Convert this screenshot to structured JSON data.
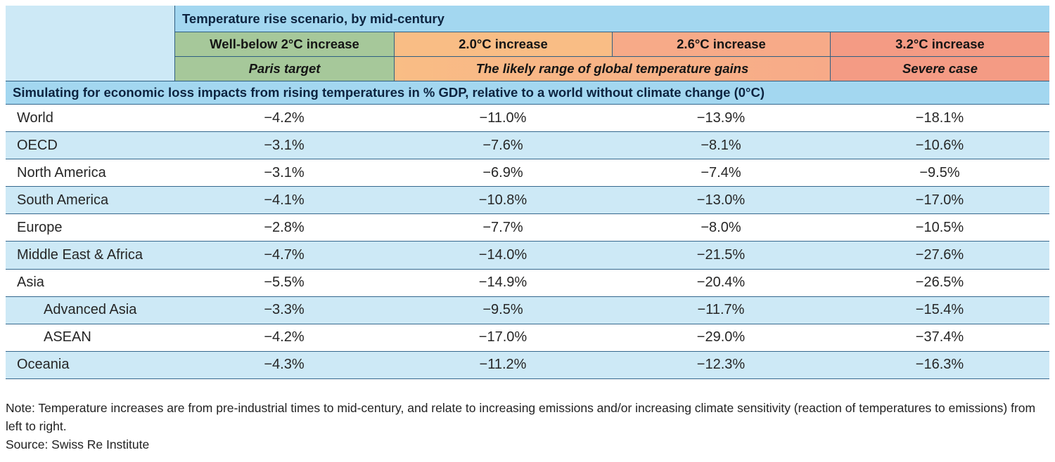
{
  "header": {
    "scenario_title": "Temperature rise scenario, by mid-century",
    "columns": [
      {
        "label": "Well-below 2°C increase",
        "sublabel": "Paris target"
      },
      {
        "label": "2.0°C increase"
      },
      {
        "label": "2.6°C increase"
      },
      {
        "label": "3.2°C increase",
        "sublabel": "Severe case"
      }
    ],
    "likely_range_label": "The likely range of global temperature gains"
  },
  "banner": {
    "text": "Simulating for economic loss impacts from rising temperatures in % GDP, relative to a world without climate change (0°C)"
  },
  "table": {
    "rows": [
      {
        "region": "World",
        "values": [
          "−4.2%",
          "−11.0%",
          "−13.9%",
          "−18.1%"
        ]
      },
      {
        "region": "OECD",
        "values": [
          "−3.1%",
          "−7.6%",
          "−8.1%",
          "−10.6%"
        ]
      },
      {
        "region": "North America",
        "values": [
          "−3.1%",
          "−6.9%",
          "−7.4%",
          "−9.5%"
        ]
      },
      {
        "region": "South America",
        "values": [
          "−4.1%",
          "−10.8%",
          "−13.0%",
          "−17.0%"
        ]
      },
      {
        "region": "Europe",
        "values": [
          "−2.8%",
          "−7.7%",
          "−8.0%",
          "−10.5%"
        ]
      },
      {
        "region": "Middle East & Africa",
        "values": [
          "−4.7%",
          "−14.0%",
          "−21.5%",
          "−27.6%"
        ]
      },
      {
        "region": "Asia",
        "values": [
          "−5.5%",
          "−14.9%",
          "−20.4%",
          "−26.5%"
        ]
      },
      {
        "region": "Advanced Asia",
        "values": [
          "−3.3%",
          "−9.5%",
          "−11.7%",
          "−15.4%"
        ]
      },
      {
        "region": "ASEAN",
        "values": [
          "−4.2%",
          "−17.0%",
          "−29.0%",
          "−37.4%"
        ]
      },
      {
        "region": "Oceania",
        "values": [
          "−4.3%",
          "−11.2%",
          "−12.3%",
          "−16.3%"
        ]
      }
    ]
  },
  "footer": {
    "note": "Note: Temperature increases are from pre-industrial times to mid-century, and relate to increasing emissions and/or increasing climate sensitivity (reaction of temperatures to emissions) from left to right.",
    "source": "Source: Swiss Re Institute"
  },
  "colors": {
    "light_blue": "#cde9f6",
    "sky_blue": "#a3d7f0",
    "green": "#a6c89a",
    "orange_2_0": "#f9bd85",
    "orange_2_6": "#f7aa88",
    "salmon_3_2": "#f49b84",
    "row_border": "#35688d",
    "header_text_navy": "#0d2440"
  },
  "chart_data": {
    "type": "table",
    "title": "Temperature rise scenario, by mid-century",
    "subtitle": "Simulating for economic loss impacts from rising temperatures in % GDP, relative to a world without climate change (0°C)",
    "columns": [
      "Well-below 2°C increase (Paris target)",
      "2.0°C increase",
      "2.6°C increase",
      "3.2°C increase (Severe case)"
    ],
    "column_group_note": "2.0°C and 2.6°C = The likely range of global temperature gains",
    "regions": [
      "World",
      "OECD",
      "North America",
      "South America",
      "Europe",
      "Middle East & Africa",
      "Asia",
      "Advanced Asia",
      "ASEAN",
      "Oceania"
    ],
    "values_pct_gdp": [
      [
        -4.2,
        -11.0,
        -13.9,
        -18.1
      ],
      [
        -3.1,
        -7.6,
        -8.1,
        -10.6
      ],
      [
        -3.1,
        -6.9,
        -7.4,
        -9.5
      ],
      [
        -4.1,
        -10.8,
        -13.0,
        -17.0
      ],
      [
        -2.8,
        -7.7,
        -8.0,
        -10.5
      ],
      [
        -4.7,
        -14.0,
        -21.5,
        -27.6
      ],
      [
        -5.5,
        -14.9,
        -20.4,
        -26.5
      ],
      [
        -3.3,
        -9.5,
        -11.7,
        -15.4
      ],
      [
        -4.2,
        -17.0,
        -29.0,
        -37.4
      ],
      [
        -4.3,
        -11.2,
        -12.3,
        -16.3
      ]
    ],
    "source": "Swiss Re Institute"
  }
}
